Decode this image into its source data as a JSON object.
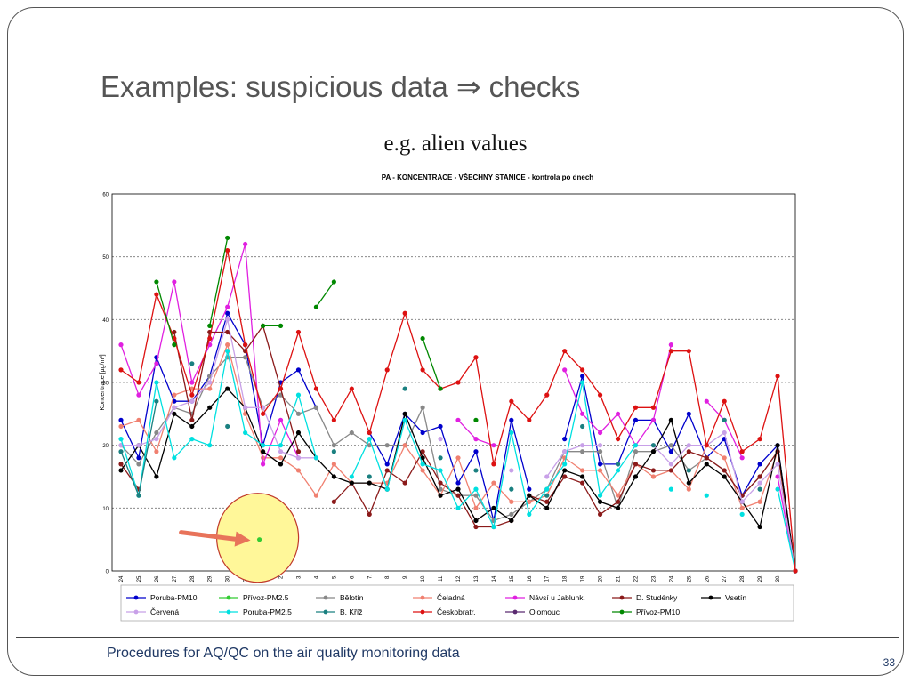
{
  "slide": {
    "title": "Examples: suspicious data ⇒ checks",
    "subtitle": "e.g. alien values",
    "footer": "Procedures for AQ/QC on the air quality monitoring data",
    "page_number": "33"
  },
  "chart_data": {
    "type": "line",
    "title": "PA - KONCENTRACE - VŠECHNY STANICE - kontrola po dnech",
    "ylabel": "Koncentrace [µg/m³]",
    "xlabel": "",
    "ylim": [
      0,
      60
    ],
    "yticks": [
      0,
      10,
      20,
      30,
      40,
      50,
      60
    ],
    "grid": true,
    "legend_position": "bottom",
    "categories": [
      "24.",
      "25.",
      "26.",
      "27.",
      "28.",
      "29.",
      "30.",
      "31.",
      "1.",
      "2.",
      "3.",
      "4.",
      "5.",
      "6.",
      "7.",
      "8.",
      "9.",
      "10.",
      "11.",
      "12.",
      "13.",
      "14.",
      "15.",
      "16.",
      "17.",
      "18.",
      "19.",
      "20.",
      "21.",
      "22.",
      "23.",
      "24.",
      "25.",
      "26.",
      "27.",
      "28.",
      "29.",
      "30.",
      ""
    ],
    "series": [
      {
        "name": "Poruba-PM10",
        "color": "#0000cc",
        "values": [
          24,
          18,
          34,
          27,
          27,
          31,
          41,
          36,
          20,
          30,
          32,
          26,
          null,
          null,
          22,
          17,
          25,
          22,
          23,
          14,
          19,
          8,
          24,
          13,
          null,
          21,
          31,
          17,
          17,
          24,
          24,
          19,
          25,
          18,
          21,
          12,
          17,
          20,
          0
        ]
      },
      {
        "name": "Přívoz-PM2.5",
        "color": "#33cc33",
        "values": [
          null,
          null,
          null,
          null,
          null,
          null,
          null,
          null,
          null,
          null,
          null,
          null,
          null,
          null,
          null,
          null,
          null,
          null,
          null,
          null,
          null,
          null,
          null,
          null,
          null,
          null,
          null,
          null,
          null,
          null,
          null,
          null,
          null,
          null,
          null,
          null,
          null,
          null,
          null
        ]
      },
      {
        "name": "Bělotín",
        "color": "#888888",
        "values": [
          20,
          17,
          22,
          26,
          25,
          31,
          34,
          34,
          26,
          28,
          25,
          26,
          20,
          22,
          20,
          20,
          20,
          26,
          13,
          12,
          12,
          8,
          9,
          11,
          13,
          19,
          19,
          19,
          10,
          19,
          19,
          20,
          16,
          18,
          16,
          12,
          15,
          19,
          0
        ]
      },
      {
        "name": "Čeladná",
        "color": "#f08070",
        "values": [
          23,
          24,
          19,
          28,
          29,
          29,
          36,
          25,
          18,
          18,
          16,
          12,
          17,
          14,
          14,
          14,
          20,
          16,
          12,
          18,
          10,
          14,
          11,
          11,
          12,
          18,
          16,
          16,
          12,
          17,
          15,
          16,
          13,
          20,
          18,
          10,
          11,
          19,
          0
        ]
      },
      {
        "name": "Návsí u Jablunk.",
        "color": "#e020e0",
        "values": [
          36,
          28,
          33,
          46,
          30,
          36,
          42,
          52,
          17,
          24,
          18,
          null,
          null,
          null,
          null,
          null,
          null,
          null,
          null,
          24,
          21,
          20,
          null,
          null,
          null,
          32,
          25,
          22,
          25,
          20,
          24,
          36,
          null,
          27,
          24,
          18,
          null,
          15,
          0
        ]
      },
      {
        "name": "D. Studénky",
        "color": "#8b1a1a",
        "values": [
          17,
          13,
          null,
          38,
          24,
          38,
          38,
          35,
          39,
          29,
          19,
          null,
          11,
          14,
          9,
          16,
          14,
          19,
          14,
          12,
          7,
          7,
          8,
          12,
          11,
          15,
          14,
          9,
          11,
          17,
          16,
          16,
          19,
          18,
          16,
          12,
          15,
          19,
          0
        ]
      },
      {
        "name": "Vsetín",
        "color": "#000000",
        "values": [
          16,
          20,
          15,
          25,
          23,
          26,
          29,
          26,
          19,
          17,
          22,
          18,
          15,
          14,
          14,
          13,
          25,
          18,
          12,
          13,
          8,
          10,
          8,
          12,
          10,
          16,
          15,
          11,
          10,
          15,
          19,
          24,
          14,
          17,
          15,
          11,
          7,
          20,
          0
        ]
      },
      {
        "name": "Červená",
        "color": "#c8a0e8",
        "values": [
          20,
          20,
          21,
          26,
          27,
          30,
          40,
          26,
          26,
          19,
          18,
          18,
          null,
          null,
          null,
          null,
          null,
          null,
          21,
          null,
          null,
          null,
          16,
          null,
          15,
          19,
          20,
          20,
          null,
          20,
          20,
          17,
          20,
          20,
          22,
          11,
          14,
          17,
          0
        ]
      },
      {
        "name": "Poruba-PM2.5",
        "color": "#00e0e0",
        "values": [
          21,
          12,
          30,
          18,
          21,
          20,
          35,
          22,
          20,
          20,
          28,
          18,
          null,
          15,
          21,
          13,
          24,
          17,
          16,
          10,
          13,
          7,
          22,
          9,
          13,
          17,
          30,
          12,
          16,
          20,
          null,
          13,
          null,
          12,
          null,
          9,
          null,
          13,
          0
        ]
      },
      {
        "name": "B. Kříž",
        "color": "#1a8080",
        "values": [
          19,
          12,
          27,
          null,
          33,
          null,
          23,
          null,
          null,
          null,
          null,
          null,
          19,
          null,
          15,
          null,
          29,
          null,
          18,
          null,
          16,
          null,
          13,
          null,
          12,
          null,
          23,
          null,
          17,
          null,
          20,
          null,
          16,
          null,
          24,
          null,
          13,
          null,
          0
        ]
      },
      {
        "name": "Českobratr.",
        "color": "#dd1111",
        "values": [
          32,
          30,
          44,
          37,
          28,
          37,
          51,
          36,
          25,
          29,
          38,
          29,
          24,
          29,
          22,
          32,
          41,
          32,
          29,
          30,
          34,
          17,
          27,
          24,
          28,
          35,
          32,
          28,
          21,
          26,
          26,
          35,
          35,
          20,
          27,
          19,
          21,
          31,
          0
        ]
      },
      {
        "name": "Olomouc",
        "color": "#5a2a70",
        "values": [
          null,
          null,
          null,
          null,
          null,
          null,
          null,
          null,
          null,
          null,
          null,
          null,
          null,
          null,
          null,
          null,
          null,
          null,
          null,
          null,
          null,
          null,
          null,
          null,
          null,
          null,
          null,
          null,
          null,
          null,
          null,
          null,
          null,
          null,
          null,
          null,
          null,
          null,
          null
        ]
      },
      {
        "name": "Přívoz-PM10",
        "color": "#008800",
        "values": [
          null,
          null,
          46,
          36,
          null,
          39,
          53,
          null,
          39,
          39,
          null,
          42,
          46,
          null,
          null,
          null,
          null,
          37,
          29,
          null,
          24,
          null,
          null,
          null,
          null,
          null,
          null,
          null,
          null,
          null,
          null,
          null,
          null,
          null,
          null,
          null,
          null,
          null,
          null
        ]
      }
    ],
    "annotations": [
      {
        "type": "highlight-circle",
        "color": "#fff799",
        "border": "#c0392b",
        "around": "isolated-point",
        "category_index": 7.8,
        "value": 5
      },
      {
        "type": "arrow",
        "color": "#e8735a",
        "points_to": "isolated-point"
      }
    ],
    "isolated_point": {
      "series": "Přívoz-PM2.5",
      "category_index": 7.8,
      "value": 5
    }
  }
}
